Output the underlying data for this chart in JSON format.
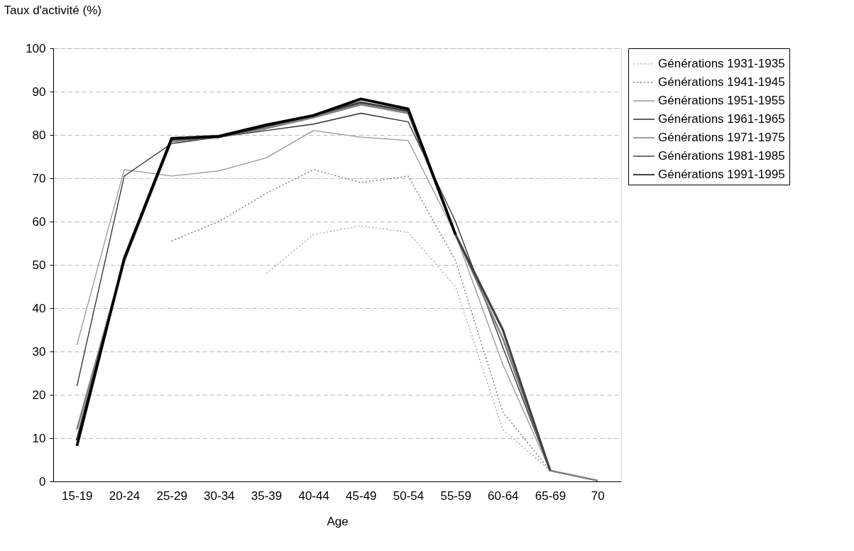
{
  "chart_data": {
    "type": "line",
    "ylabel": "Taux d'activité (%)",
    "xlabel": "Age",
    "categories": [
      "15-19",
      "20-24",
      "25-29",
      "30-34",
      "35-39",
      "40-44",
      "45-49",
      "50-54",
      "55-59",
      "60-64",
      "65-69",
      "70"
    ],
    "ylim": [
      0,
      100
    ],
    "yticks": [
      0,
      10,
      20,
      30,
      40,
      50,
      60,
      70,
      80,
      90,
      100
    ],
    "grid": "y",
    "legend": "top right",
    "series": [
      {
        "name": "Générations 1931-1935",
        "color": "#b0b0b0",
        "line_style": "dotted",
        "values": [
          null,
          null,
          null,
          null,
          48,
          57,
          59,
          57.5,
          45,
          12,
          2.5,
          0.2
        ]
      },
      {
        "name": "Générations 1941-1945",
        "color": "#7f7f7f",
        "line_style": "dotted",
        "values": [
          null,
          null,
          55.5,
          60,
          66.5,
          72,
          69,
          70.5,
          51,
          16,
          2.5,
          0.2
        ]
      },
      {
        "name": "Générations 1951-1955",
        "color": "#969696",
        "line_style": "solid",
        "values": [
          31.5,
          72,
          70.5,
          71.7,
          74.7,
          81,
          79.5,
          78.7,
          57,
          27,
          2.5,
          0.2
        ]
      },
      {
        "name": "Générations 1961-1965",
        "color": "#2b2b2b",
        "line_style": "solid",
        "values": [
          22,
          70.5,
          78,
          79.5,
          81,
          82.5,
          85,
          83,
          60,
          31,
          2.5,
          0.2
        ]
      },
      {
        "name": "Générations 1971-1975",
        "color": "#808080",
        "line_style": "solid",
        "values": [
          12,
          51,
          78.5,
          79.5,
          81.5,
          84,
          87,
          85,
          57,
          33,
          2.5,
          0.2
        ]
      },
      {
        "name": "Générations 1981-1985",
        "color": "#404040",
        "line_style": "solid",
        "values": [
          9.5,
          51,
          79,
          79.5,
          82,
          84.5,
          87.5,
          85.5,
          57,
          35,
          2.5,
          null
        ]
      },
      {
        "name": "Générations 1991-1995",
        "color": "#000000",
        "line_style": "solid",
        "values": [
          8.2,
          51.5,
          79.2,
          79.7,
          82.3,
          84.5,
          88.3,
          86,
          57,
          null,
          null,
          null
        ]
      }
    ]
  }
}
